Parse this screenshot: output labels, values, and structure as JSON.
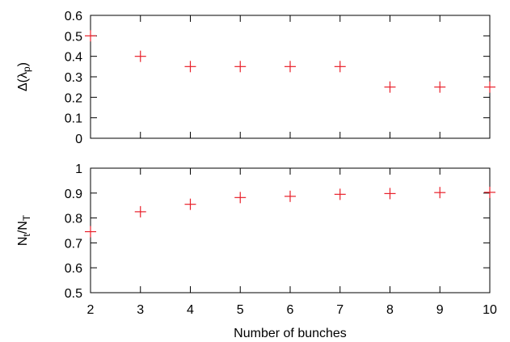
{
  "chart_data": [
    {
      "type": "scatter",
      "ylabel_base": "Δ(λ",
      "ylabel_sub": "p",
      "ylabel_end": ")",
      "xlim": [
        2,
        10
      ],
      "ylim": [
        0,
        0.6
      ],
      "yticks": [
        "0",
        "0.1",
        "0.2",
        "0.3",
        "0.4",
        "0.5",
        "0.6"
      ],
      "ytick_values": [
        0,
        0.1,
        0.2,
        0.3,
        0.4,
        0.5,
        0.6
      ],
      "x": [
        2,
        3,
        4,
        5,
        6,
        7,
        8,
        9,
        10
      ],
      "y": [
        0.5,
        0.4,
        0.35,
        0.35,
        0.35,
        0.35,
        0.25,
        0.25,
        0.25
      ],
      "marker": "+",
      "color": "#e8202a",
      "grid": false
    },
    {
      "type": "scatter",
      "ylabel_n1": "N",
      "ylabel_sub1": "t",
      "ylabel_slash": "/N",
      "ylabel_sub2": "T",
      "xlabel": "Number of bunches",
      "xlim": [
        2,
        10
      ],
      "ylim": [
        0.5,
        1
      ],
      "xticks": [
        "2",
        "3",
        "4",
        "5",
        "6",
        "7",
        "8",
        "9",
        "10"
      ],
      "xtick_values": [
        2,
        3,
        4,
        5,
        6,
        7,
        8,
        9,
        10
      ],
      "yticks": [
        "0.5",
        "0.6",
        "0.7",
        "0.8",
        "0.9",
        "1"
      ],
      "ytick_values": [
        0.5,
        0.6,
        0.7,
        0.8,
        0.9,
        1
      ],
      "x": [
        2,
        3,
        4,
        5,
        6,
        7,
        8,
        9,
        10
      ],
      "y": [
        0.745,
        0.825,
        0.855,
        0.882,
        0.887,
        0.895,
        0.898,
        0.902,
        0.903
      ],
      "marker": "+",
      "color": "#e8202a",
      "grid": false
    }
  ]
}
